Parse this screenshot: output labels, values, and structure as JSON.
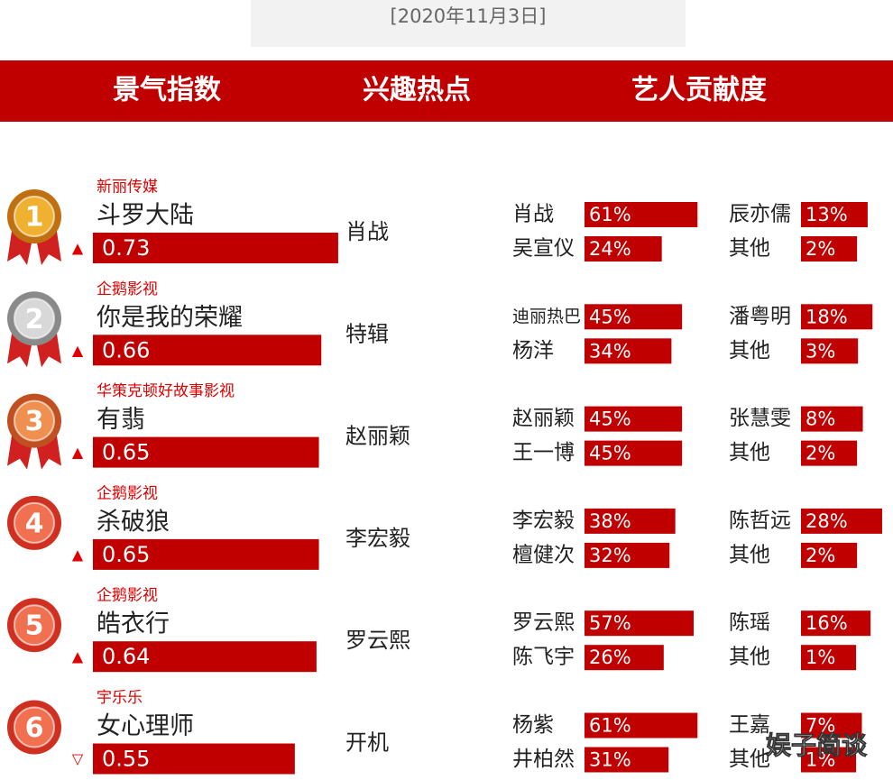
{
  "date": "[2020年11月3日]",
  "headers": [
    "景气指数",
    "兴趣热点",
    "艺人贡献度"
  ],
  "rows": [
    {
      "rank": 1,
      "company": "新丽传媒",
      "title": "斗罗大陆",
      "index": 0.73,
      "trend": "▲",
      "hotspot": "肖战",
      "artists": [
        {
          "name": "肖战",
          "value": 61,
          "value_label": "61%"
        },
        {
          "name": "辰亦儒",
          "value": 13,
          "value_label": "13%"
        },
        {
          "name": "吴宣仪",
          "value": 24,
          "value_label": "24%"
        },
        {
          "name": "其他",
          "value": 2,
          "value_label": "2%"
        }
      ]
    },
    {
      "rank": 2,
      "company": "企鹅影视",
      "title": "你是我的荣耀",
      "index": 0.66,
      "trend": "▲",
      "hotspot": "特辑",
      "artists": [
        {
          "name": "迪丽热巴",
          "value": 45,
          "value_label": "45%"
        },
        {
          "name": "潘粤明",
          "value": 18,
          "value_label": "18%"
        },
        {
          "name": "杨洋",
          "value": 34,
          "value_label": "34%"
        },
        {
          "name": "其他",
          "value": 3,
          "value_label": "3%"
        }
      ]
    },
    {
      "rank": 3,
      "company": "华策克顿好故事影视",
      "title": "有翡",
      "index": 0.65,
      "trend": "▲",
      "hotspot": "赵丽颖",
      "artists": [
        {
          "name": "赵丽颖",
          "value": 45,
          "value_label": "45%"
        },
        {
          "name": "张慧雯",
          "value": 8,
          "value_label": "8%"
        },
        {
          "name": "王一博",
          "value": 45,
          "value_label": "45%"
        },
        {
          "name": "其他",
          "value": 2,
          "value_label": "2%"
        }
      ]
    },
    {
      "rank": 4,
      "company": "企鹅影视",
      "title": "杀破狼",
      "index": 0.65,
      "trend": "▲",
      "hotspot": "李宏毅",
      "artists": [
        {
          "name": "李宏毅",
          "value": 38,
          "value_label": "38%"
        },
        {
          "name": "陈哲远",
          "value": 28,
          "value_label": "28%"
        },
        {
          "name": "檀健次",
          "value": 32,
          "value_label": "32%"
        },
        {
          "name": "其他",
          "value": 2,
          "value_label": "2%"
        }
      ]
    },
    {
      "rank": 5,
      "company": "企鹅影视",
      "title": "皓衣行",
      "index": 0.64,
      "trend": "▲",
      "hotspot": "罗云熙",
      "artists": [
        {
          "name": "罗云熙",
          "value": 57,
          "value_label": "57%"
        },
        {
          "name": "陈瑶",
          "value": 16,
          "value_label": "16%"
        },
        {
          "name": "陈飞宇",
          "value": 26,
          "value_label": "26%"
        },
        {
          "name": "其他",
          "value": 1,
          "value_label": "1%"
        }
      ]
    },
    {
      "rank": 6,
      "company": "宇乐乐",
      "title": "女心理师",
      "index": 0.55,
      "trend": "▽",
      "hotspot": "开机",
      "artists": [
        {
          "name": "杨紫",
          "value": 61,
          "value_label": "61%"
        },
        {
          "name": "王嘉",
          "value": 7,
          "value_label": "7%"
        },
        {
          "name": "井柏然",
          "value": 31,
          "value_label": "31%"
        },
        {
          "name": "其他",
          "value": 1,
          "value_label": "1%"
        }
      ]
    }
  ],
  "watermark": "娱子简谈"
}
